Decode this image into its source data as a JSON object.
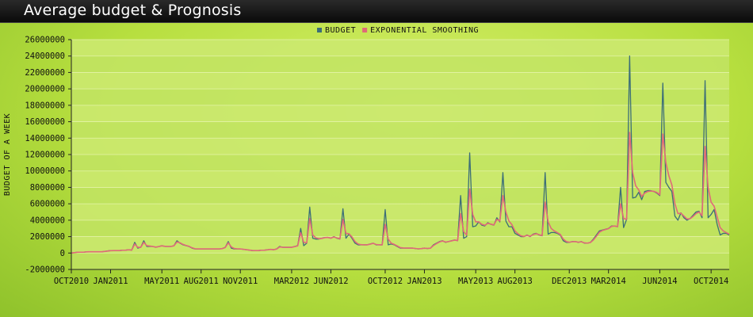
{
  "window": {
    "title": "Average budget & Prognosis"
  },
  "colors": {
    "budget": "#3c6e78",
    "smoothing": "#e06a78",
    "plot_bg": "#c2e464",
    "grid": "#e4f3a8"
  },
  "chart_data": {
    "type": "line",
    "title": "Average budget & Prognosis",
    "ylabel": "BUDGET OF A WEEK",
    "xlabel": "",
    "ylim": [
      -2000000,
      26000000
    ],
    "y_ticks": [
      -2000000,
      0,
      2000000,
      4000000,
      6000000,
      8000000,
      10000000,
      12000000,
      14000000,
      16000000,
      18000000,
      20000000,
      22000000,
      24000000,
      26000000
    ],
    "y_tick_labels": [
      "-2000000",
      "0",
      "2000000",
      "4000000",
      "6000000",
      "8000000",
      "10000000",
      "12000000",
      "14000000",
      "16000000",
      "18000000",
      "20000000",
      "22000000",
      "24000000",
      "26000000"
    ],
    "x_ticks": [
      "OCT2010",
      "JAN2011",
      "MAY2011",
      "AUG2011",
      "NOV2011",
      "MAR2012",
      "JUN2012",
      "OCT2012",
      "JAN2013",
      "MAY2013",
      "AUG2013",
      "DEC2013",
      "MAR2014",
      "JUN2014",
      "OCT2014"
    ],
    "x_tick_weeks": [
      0,
      13,
      30,
      43,
      56,
      73,
      86,
      104,
      117,
      134,
      147,
      165,
      178,
      195,
      212
    ],
    "legend_position": "top-center",
    "grid": true,
    "series": [
      {
        "name": "BUDGET",
        "values": [
          0,
          50000,
          100000,
          100000,
          100000,
          150000,
          150000,
          150000,
          150000,
          150000,
          150000,
          200000,
          250000,
          300000,
          300000,
          300000,
          300000,
          350000,
          350000,
          400000,
          350000,
          1300000,
          600000,
          700000,
          1500000,
          800000,
          800000,
          800000,
          700000,
          800000,
          900000,
          800000,
          800000,
          800000,
          900000,
          1500000,
          1200000,
          1000000,
          900000,
          800000,
          600000,
          500000,
          500000,
          500000,
          500000,
          500000,
          500000,
          500000,
          500000,
          500000,
          550000,
          700000,
          1400000,
          600000,
          500000,
          500000,
          500000,
          450000,
          400000,
          350000,
          300000,
          300000,
          300000,
          350000,
          350000,
          400000,
          450000,
          400000,
          500000,
          800000,
          700000,
          700000,
          700000,
          700000,
          800000,
          900000,
          3000000,
          900000,
          1200000,
          5600000,
          1800000,
          1700000,
          1700000,
          1800000,
          1900000,
          1900000,
          1800000,
          2000000,
          1800000,
          1700000,
          5400000,
          1800000,
          2300000,
          1800000,
          1200000,
          1000000,
          1000000,
          1000000,
          1000000,
          1100000,
          1200000,
          1000000,
          1000000,
          1000000,
          5300000,
          1000000,
          1100000,
          1000000,
          800000,
          600000,
          600000,
          600000,
          600000,
          600000,
          550000,
          500000,
          550000,
          600000,
          550000,
          600000,
          1000000,
          1200000,
          1400000,
          1500000,
          1300000,
          1400000,
          1500000,
          1600000,
          1500000,
          7000000,
          1800000,
          2000000,
          12200000,
          3200000,
          3300000,
          3800000,
          3400000,
          3300000,
          3700000,
          3500000,
          3400000,
          4300000,
          3800000,
          9800000,
          3900000,
          3200000,
          3200000,
          2400000,
          2200000,
          2000000,
          2000000,
          2200000,
          2000000,
          2300000,
          2400000,
          2200000,
          2100000,
          9800000,
          2300000,
          2500000,
          2500000,
          2400000,
          2200000,
          1500000,
          1300000,
          1300000,
          1400000,
          1400000,
          1300000,
          1400000,
          1200000,
          1200000,
          1300000,
          1700000,
          2200000,
          2700000,
          2800000,
          2900000,
          3000000,
          3300000,
          3300000,
          3200000,
          8000000,
          3100000,
          4100000,
          24000000,
          6700000,
          6800000,
          7400000,
          6500000,
          7500000,
          7600000,
          7600000,
          7500000,
          7300000,
          7000000,
          20700000,
          8600000,
          8000000,
          7500000,
          4500000,
          4000000,
          4900000,
          4300000,
          4000000,
          4200000,
          4600000,
          5000000,
          5100000,
          4300000,
          21000000,
          4300000,
          4700000,
          5300000,
          3500000,
          2200000,
          2400000,
          2400000,
          2200000
        ]
      },
      {
        "name": "EXPONENTIAL SMOOTHING",
        "values": [
          0,
          50000,
          90000,
          100000,
          100000,
          140000,
          150000,
          150000,
          150000,
          150000,
          150000,
          190000,
          240000,
          290000,
          300000,
          300000,
          300000,
          340000,
          350000,
          390000,
          360000,
          1100000,
          700000,
          700000,
          1300000,
          900000,
          850000,
          800000,
          720000,
          790000,
          880000,
          820000,
          800000,
          800000,
          880000,
          1350000,
          1250000,
          1050000,
          920000,
          820000,
          640000,
          520000,
          500000,
          500000,
          500000,
          500000,
          500000,
          500000,
          500000,
          500000,
          540000,
          670000,
          1250000,
          750000,
          550000,
          510000,
          500000,
          460000,
          410000,
          360000,
          310000,
          300000,
          300000,
          340000,
          350000,
          390000,
          440000,
          410000,
          480000,
          740000,
          710000,
          700000,
          700000,
          700000,
          780000,
          880000,
          2500000,
          1300000,
          1250000,
          4200000,
          2200000,
          1850000,
          1750000,
          1780000,
          1880000,
          1900000,
          1820000,
          1960000,
          1840000,
          1740000,
          4100000,
          2400000,
          2350000,
          1950000,
          1400000,
          1100000,
          1020000,
          1000000,
          1000000,
          1080000,
          1180000,
          1040000,
          1010000,
          1000000,
          3500000,
          1700000,
          1200000,
          1050000,
          860000,
          660000,
          610000,
          600000,
          600000,
          600000,
          560000,
          510000,
          540000,
          590000,
          560000,
          590000,
          920000,
          1150000,
          1350000,
          1470000,
          1340000,
          1390000,
          1480000,
          1580000,
          1520000,
          4800000,
          2600000,
          2200000,
          7800000,
          4700000,
          3800000,
          3800000,
          3500000,
          3380000,
          3620000,
          3520000,
          3420000,
          4100000,
          3900000,
          7000000,
          5000000,
          3900000,
          3450000,
          2700000,
          2350000,
          2100000,
          2020000,
          2160000,
          2040000,
          2240000,
          2360000,
          2240000,
          2130000,
          6200000,
          3800000,
          3000000,
          2700000,
          2500000,
          2280000,
          1700000,
          1400000,
          1320000,
          1380000,
          1400000,
          1320000,
          1380000,
          1240000,
          1210000,
          1280000,
          1600000,
          2050000,
          2550000,
          2750000,
          2870000,
          2970000,
          3240000,
          3290000,
          3220000,
          6000000,
          4200000,
          4100000,
          14700000,
          9800000,
          8200000,
          7700000,
          6900000,
          7300000,
          7500000,
          7550000,
          7520000,
          7380000,
          7100000,
          14500000,
          11000000,
          9400000,
          8300000,
          6000000,
          4800000,
          4850000,
          4500000,
          4150000,
          4180000,
          4450000,
          4800000,
          5000000,
          4550000,
          13000000,
          8000000,
          6200000,
          5700000,
          4400000,
          3100000,
          2700000,
          2500000,
          2300000
        ]
      }
    ]
  }
}
